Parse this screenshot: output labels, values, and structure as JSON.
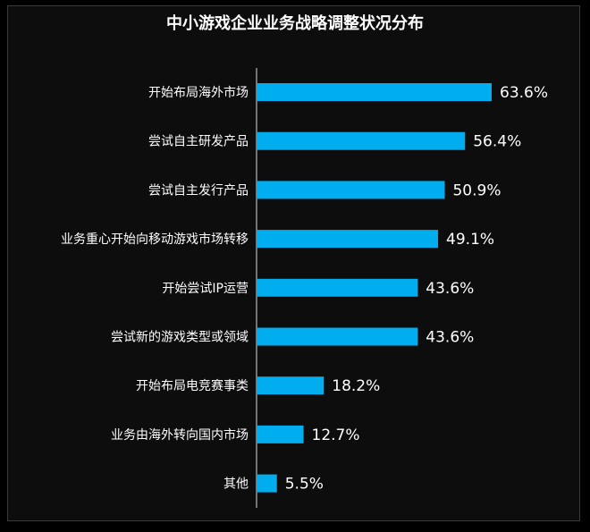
{
  "colors": {
    "bar": "#00adee",
    "background": "#0d0d0d",
    "text": "#ffffff"
  },
  "chart_data": {
    "type": "bar",
    "orientation": "horizontal",
    "title": "中小游戏企业业务战略调整状况分布",
    "categories": [
      "开始布局海外市场",
      "尝试自主研发产品",
      "尝试自主发行产品",
      "业务重心开始向移动游戏市场转移",
      "开始尝试IP运营",
      "尝试新的游戏类型或领域",
      "开始布局电竞赛事类",
      "业务由海外转向国内市场",
      "其他"
    ],
    "values": [
      63.6,
      56.4,
      50.9,
      49.1,
      43.6,
      43.6,
      18.2,
      12.7,
      5.5
    ],
    "value_labels": [
      "63.6%",
      "56.4%",
      "50.9%",
      "49.1%",
      "43.6%",
      "43.6%",
      "18.2%",
      "12.7%",
      "5.5%"
    ],
    "xlim": [
      0,
      100
    ],
    "grid": false,
    "legend": "none"
  }
}
